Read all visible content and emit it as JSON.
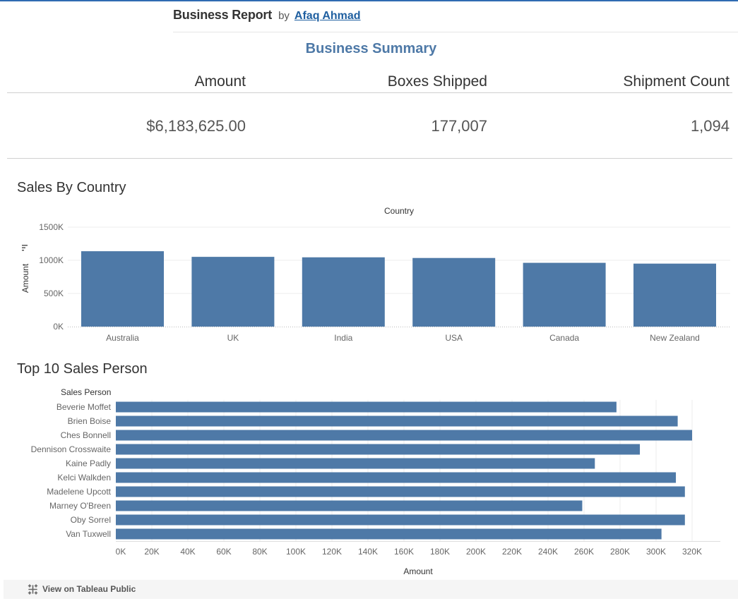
{
  "header": {
    "title": "Business Report",
    "by": "by",
    "author": "Afaq Ahmad"
  },
  "summary": {
    "title": "Business Summary",
    "kpis": [
      {
        "label": "Amount",
        "value": "$6,183,625.00"
      },
      {
        "label": "Boxes Shipped",
        "value": "177,007"
      },
      {
        "label": "Shipment Count",
        "value": "1,094"
      }
    ]
  },
  "footer": {
    "link_label": "View on Tableau Public",
    "icon": "tableau-logo-icon"
  },
  "colors": {
    "bar": "#4e79a7",
    "accent": "#2f6bb2",
    "author_link": "#1f5fa0"
  },
  "chart_data": [
    {
      "type": "bar",
      "title": "Sales By Country",
      "xlabel": "Country",
      "ylabel": "Amount",
      "categories": [
        "Australia",
        "UK",
        "India",
        "USA",
        "Canada",
        "New Zealand"
      ],
      "values": [
        1137000,
        1052000,
        1045000,
        1035000,
        962000,
        950000
      ],
      "ylim": [
        0,
        1500000
      ],
      "yticks": [
        0,
        500000,
        1000000,
        1500000
      ],
      "ytick_labels": [
        "0K",
        "500K",
        "1000K",
        "1500K"
      ],
      "grid": true
    },
    {
      "type": "bar",
      "orientation": "horizontal",
      "title": "Top 10 Sales Person",
      "ylabel": "Sales Person",
      "xlabel": "Amount",
      "categories": [
        "Beverie Moffet",
        "Brien Boise",
        "Ches Bonnell",
        "Dennison Crosswaite",
        "Kaine Padly",
        "Kelci Walkden",
        "Madelene Upcott",
        "Marney O'Breen",
        "Oby Sorrel",
        "Van Tuxwell"
      ],
      "values": [
        278000,
        312000,
        320000,
        291000,
        266000,
        311000,
        316000,
        259000,
        316000,
        303000
      ],
      "xlim": [
        0,
        335000
      ],
      "xticks": [
        0,
        20000,
        40000,
        60000,
        80000,
        100000,
        120000,
        140000,
        160000,
        180000,
        200000,
        220000,
        240000,
        260000,
        280000,
        300000,
        320000
      ],
      "xtick_labels": [
        "0K",
        "20K",
        "40K",
        "60K",
        "80K",
        "100K",
        "120K",
        "140K",
        "160K",
        "180K",
        "200K",
        "220K",
        "240K",
        "260K",
        "280K",
        "300K",
        "320K"
      ],
      "grid": true
    }
  ]
}
